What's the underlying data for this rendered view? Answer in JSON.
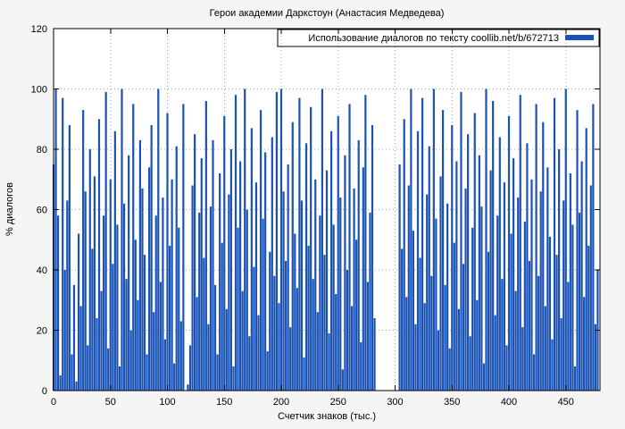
{
  "title": "Герои академии Даркстоун (Анастасия Медведева)",
  "legend": {
    "label": "Использование диалогов по тексту coollib.net/b/672713"
  },
  "axes": {
    "x_label": "Счетчик знаков (тыс.)",
    "y_label": "% диалогов",
    "x_ticks": [
      0,
      50,
      100,
      150,
      200,
      250,
      300,
      350,
      400,
      450
    ],
    "y_ticks": [
      0,
      20,
      40,
      60,
      80,
      100,
      120
    ]
  },
  "colors": {
    "bar": "#1a53b5",
    "grid": "#a8a8a8",
    "border": "#000000",
    "plot_bg": "#ffffff",
    "page_bg": "#f5f5f5"
  },
  "chart_data": {
    "type": "bar",
    "title": "Герои академии Даркстоун (Анастасия Медведева)",
    "series_name": "Использование диалогов по тексту coollib.net/b/672713",
    "xlabel": "Счетчик знаков (тыс.)",
    "ylabel": "% диалогов",
    "xlim": [
      0,
      480
    ],
    "ylim": [
      0,
      120
    ],
    "x_start": 0,
    "x_step": 2,
    "values": [
      75,
      100,
      58,
      5,
      97,
      40,
      63,
      88,
      12,
      35,
      3,
      52,
      28,
      93,
      66,
      15,
      80,
      47,
      71,
      24,
      90,
      33,
      58,
      99,
      14,
      70,
      42,
      86,
      55,
      8,
      100,
      62,
      37,
      78,
      20,
      95,
      50,
      30,
      83,
      67,
      45,
      12,
      74,
      88,
      26,
      58,
      100,
      36,
      64,
      17,
      92,
      48,
      70,
      9,
      81,
      54,
      23,
      95,
      0,
      2,
      15,
      68,
      85,
      31,
      59,
      77,
      44,
      96,
      22,
      61,
      83,
      35,
      12,
      72,
      49,
      91,
      27,
      65,
      80,
      8,
      98,
      54,
      76,
      33,
      100,
      60,
      18,
      87,
      41,
      69,
      25,
      93,
      57,
      79,
      13,
      46,
      84,
      38,
      99,
      29,
      100,
      66,
      43,
      75,
      21,
      89,
      52,
      34,
      97,
      63,
      11,
      82,
      48,
      94,
      37,
      70,
      26,
      58,
      100,
      45,
      73,
      19,
      86,
      55,
      32,
      91,
      64,
      7,
      78,
      40,
      95,
      28,
      67,
      50,
      83,
      16,
      74,
      98,
      36,
      59,
      88,
      24,
      0,
      0,
      0,
      0,
      0,
      0,
      0,
      0,
      0,
      0,
      75,
      47,
      90,
      31,
      68,
      100,
      53,
      22,
      86,
      44,
      97,
      29,
      65,
      81,
      38,
      100,
      57,
      20,
      71,
      93,
      35,
      62,
      14,
      88,
      49,
      76,
      27,
      99,
      42,
      67,
      85,
      18,
      54,
      92,
      30,
      78,
      61,
      9,
      100,
      46,
      73,
      96,
      25,
      58,
      84,
      37,
      69,
      15,
      91,
      52,
      77,
      33,
      64,
      98,
      21,
      56,
      82,
      43,
      70,
      12,
      95,
      38,
      66,
      89,
      28,
      74,
      51,
      17,
      97,
      45,
      80,
      24,
      63,
      100,
      36,
      72,
      55,
      8,
      93,
      59,
      76,
      31,
      87,
      48,
      68,
      95,
      22,
      40
    ]
  }
}
